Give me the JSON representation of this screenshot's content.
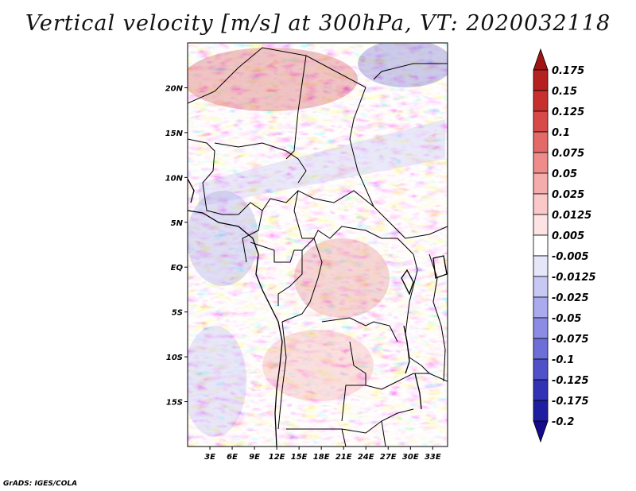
{
  "title": "Vertical velocity [m/s] at 300hPa, VT: 2020032118",
  "credit": "GrADS: IGES/COLA",
  "map": {
    "lon_range": [
      0,
      35
    ],
    "lat_range": [
      -20,
      25
    ],
    "lon_ticks": [
      {
        "value": 3,
        "label": "3E"
      },
      {
        "value": 6,
        "label": "6E"
      },
      {
        "value": 9,
        "label": "9E"
      },
      {
        "value": 12,
        "label": "12E"
      },
      {
        "value": 15,
        "label": "15E"
      },
      {
        "value": 18,
        "label": "18E"
      },
      {
        "value": 21,
        "label": "21E"
      },
      {
        "value": 24,
        "label": "24E"
      },
      {
        "value": 27,
        "label": "27E"
      },
      {
        "value": 30,
        "label": "30E"
      },
      {
        "value": 33,
        "label": "33E"
      }
    ],
    "lat_ticks": [
      {
        "value": 20,
        "label": "20N"
      },
      {
        "value": 15,
        "label": "15N"
      },
      {
        "value": 10,
        "label": "10N"
      },
      {
        "value": 5,
        "label": "5N"
      },
      {
        "value": 0,
        "label": "EQ"
      },
      {
        "value": -5,
        "label": "5S"
      },
      {
        "value": -10,
        "label": "10S"
      },
      {
        "value": -15,
        "label": "15S"
      }
    ]
  },
  "colorbar": {
    "levels": [
      "0.175",
      "0.15",
      "0.125",
      "0.1",
      "0.075",
      "0.05",
      "0.025",
      "0.0125",
      "0.005",
      "-0.005",
      "-0.0125",
      "-0.025",
      "-0.05",
      "-0.075",
      "-0.1",
      "-0.125",
      "-0.175",
      "-0.2"
    ],
    "colors": [
      "#a01414",
      "#b52020",
      "#c83030",
      "#d84a4a",
      "#e46a6a",
      "#ee8c8c",
      "#f5acac",
      "#fac8c8",
      "#fde3e3",
      "#ffffff",
      "#e6e6fa",
      "#c8c8f5",
      "#aaaaee",
      "#8c8ce4",
      "#6e6ed8",
      "#5050c8",
      "#3232b4",
      "#1e1ea0",
      "#140a8c"
    ]
  }
}
